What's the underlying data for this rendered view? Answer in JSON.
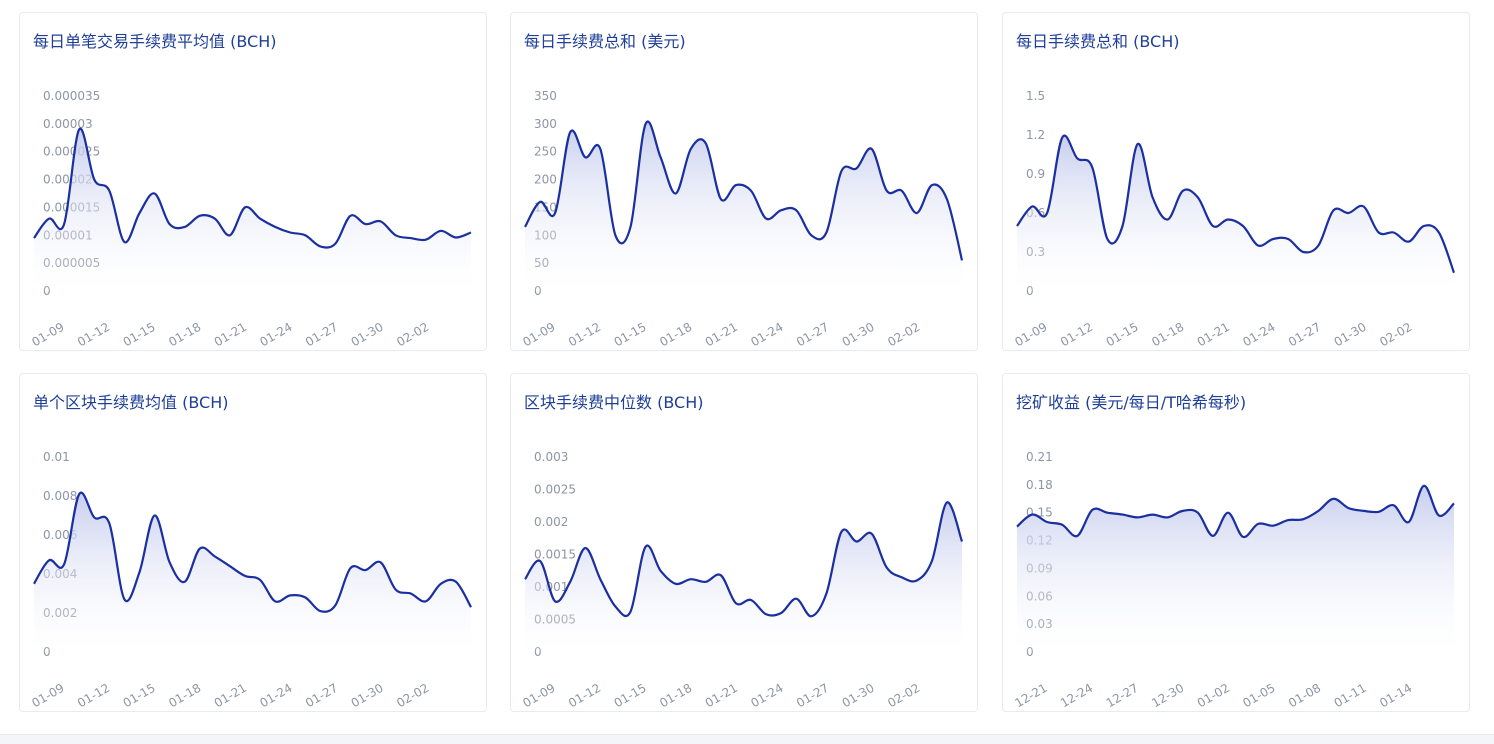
{
  "colors": {
    "line": "#1a2fa0",
    "area_top": "#c2c9ec",
    "area_bottom": "#ffffff",
    "title": "#1f3f98",
    "tick": "#8e95a3"
  },
  "chart_data": [
    {
      "type": "area",
      "title": "每日单笔交易手续费平均值 (BCH)",
      "ylim": [
        0,
        3.5e-05
      ],
      "yticks": [
        "0",
        "0.000005",
        "0.00001",
        "0.000015",
        "0.00002",
        "0.000025",
        "0.00003",
        "0.000035"
      ],
      "xticks": [
        "01-09",
        "01-12",
        "01-15",
        "01-18",
        "01-21",
        "01-24",
        "01-27",
        "01-30",
        "02-02"
      ],
      "x": [
        "01-06",
        "01-07",
        "01-08",
        "01-09",
        "01-10",
        "01-11",
        "01-12",
        "01-13",
        "01-14",
        "01-15",
        "01-16",
        "01-17",
        "01-18",
        "01-19",
        "01-20",
        "01-21",
        "01-22",
        "01-23",
        "01-24",
        "01-25",
        "01-26",
        "01-27",
        "01-28",
        "01-29",
        "01-30",
        "01-31",
        "02-01",
        "02-02",
        "02-03",
        "02-04"
      ],
      "values": [
        9.5e-06,
        1.3e-05,
        1.2e-05,
        2.9e-05,
        2e-05,
        1.8e-05,
        8.8e-06,
        1.4e-05,
        1.75e-05,
        1.2e-05,
        1.15e-05,
        1.35e-05,
        1.3e-05,
        1e-05,
        1.5e-05,
        1.3e-05,
        1.15e-05,
        1.05e-05,
        1e-05,
        8e-06,
        8.5e-06,
        1.35e-05,
        1.2e-05,
        1.25e-05,
        1e-05,
        9.5e-06,
        9.2e-06,
        1.08e-05,
        9.6e-06,
        1.05e-05
      ],
      "grid": false,
      "legend": "none"
    },
    {
      "type": "area",
      "title": "每日手续费总和 (美元)",
      "ylim": [
        0,
        350
      ],
      "yticks": [
        "0",
        "50",
        "100",
        "150",
        "200",
        "250",
        "300",
        "350"
      ],
      "xticks": [
        "01-09",
        "01-12",
        "01-15",
        "01-18",
        "01-21",
        "01-24",
        "01-27",
        "01-30",
        "02-02"
      ],
      "x": [
        "01-06",
        "01-07",
        "01-08",
        "01-09",
        "01-10",
        "01-11",
        "01-12",
        "01-13",
        "01-14",
        "01-15",
        "01-16",
        "01-17",
        "01-18",
        "01-19",
        "01-20",
        "01-21",
        "01-22",
        "01-23",
        "01-24",
        "01-25",
        "01-26",
        "01-27",
        "01-28",
        "01-29",
        "01-30",
        "01-31",
        "02-01",
        "02-02",
        "02-03",
        "02-04"
      ],
      "values": [
        115,
        160,
        140,
        285,
        240,
        255,
        100,
        115,
        300,
        240,
        175,
        255,
        265,
        165,
        190,
        180,
        130,
        145,
        145,
        100,
        105,
        215,
        220,
        255,
        180,
        180,
        140,
        190,
        165,
        55
      ],
      "grid": false,
      "legend": "none"
    },
    {
      "type": "area",
      "title": "每日手续费总和 (BCH)",
      "ylim": [
        0,
        1.5
      ],
      "yticks": [
        "0",
        "0.3",
        "0.6",
        "0.9",
        "1.2",
        "1.5"
      ],
      "xticks": [
        "01-09",
        "01-12",
        "01-15",
        "01-18",
        "01-21",
        "01-24",
        "01-27",
        "01-30",
        "02-02"
      ],
      "x": [
        "01-06",
        "01-07",
        "01-08",
        "01-09",
        "01-10",
        "01-11",
        "01-12",
        "01-13",
        "01-14",
        "01-15",
        "01-16",
        "01-17",
        "01-18",
        "01-19",
        "01-20",
        "01-21",
        "01-22",
        "01-23",
        "01-24",
        "01-25",
        "01-26",
        "01-27",
        "01-28",
        "01-29",
        "01-30",
        "01-31",
        "02-01",
        "02-02",
        "02-03",
        "02-04"
      ],
      "values": [
        0.5,
        0.65,
        0.6,
        1.18,
        1.02,
        0.95,
        0.4,
        0.5,
        1.13,
        0.72,
        0.55,
        0.77,
        0.72,
        0.5,
        0.55,
        0.5,
        0.35,
        0.4,
        0.4,
        0.3,
        0.35,
        0.62,
        0.6,
        0.65,
        0.45,
        0.45,
        0.38,
        0.5,
        0.45,
        0.14
      ],
      "grid": false,
      "legend": "none"
    },
    {
      "type": "area",
      "title": "单个区块手续费均值 (BCH)",
      "ylim": [
        0,
        0.01
      ],
      "yticks": [
        "0",
        "0.002",
        "0.004",
        "0.006",
        "0.008",
        "0.01"
      ],
      "xticks": [
        "01-09",
        "01-12",
        "01-15",
        "01-18",
        "01-21",
        "01-24",
        "01-27",
        "01-30",
        "02-02"
      ],
      "x": [
        "01-06",
        "01-07",
        "01-08",
        "01-09",
        "01-10",
        "01-11",
        "01-12",
        "01-13",
        "01-14",
        "01-15",
        "01-16",
        "01-17",
        "01-18",
        "01-19",
        "01-20",
        "01-21",
        "01-22",
        "01-23",
        "01-24",
        "01-25",
        "01-26",
        "01-27",
        "01-28",
        "01-29",
        "01-30",
        "01-31",
        "02-01",
        "02-02",
        "02-03",
        "02-04"
      ],
      "values": [
        0.0035,
        0.0047,
        0.0045,
        0.0081,
        0.0069,
        0.0066,
        0.0027,
        0.0041,
        0.007,
        0.0046,
        0.0036,
        0.0053,
        0.0049,
        0.0044,
        0.0039,
        0.0037,
        0.0026,
        0.0029,
        0.0028,
        0.0021,
        0.0024,
        0.0043,
        0.0042,
        0.0046,
        0.0032,
        0.003,
        0.0026,
        0.0035,
        0.0036,
        0.0023
      ],
      "grid": false,
      "legend": "none"
    },
    {
      "type": "area",
      "title": "区块手续费中位数 (BCH)",
      "ylim": [
        0,
        0.003
      ],
      "yticks": [
        "0",
        "0.0005",
        "0.001",
        "0.0015",
        "0.002",
        "0.0025",
        "0.003"
      ],
      "xticks": [
        "01-09",
        "01-12",
        "01-15",
        "01-18",
        "01-21",
        "01-24",
        "01-27",
        "01-30",
        "02-02"
      ],
      "x": [
        "01-06",
        "01-07",
        "01-08",
        "01-09",
        "01-10",
        "01-11",
        "01-12",
        "01-13",
        "01-14",
        "01-15",
        "01-16",
        "01-17",
        "01-18",
        "01-19",
        "01-20",
        "01-21",
        "01-22",
        "01-23",
        "01-24",
        "01-25",
        "01-26",
        "01-27",
        "01-28",
        "01-29",
        "01-30",
        "01-31",
        "02-01",
        "02-02",
        "02-03",
        "02-04"
      ],
      "values": [
        0.00112,
        0.0014,
        0.00078,
        0.00108,
        0.0016,
        0.00112,
        0.0007,
        0.00062,
        0.00162,
        0.00125,
        0.00105,
        0.00112,
        0.00108,
        0.00118,
        0.00075,
        0.0008,
        0.00058,
        0.0006,
        0.00082,
        0.00055,
        0.0009,
        0.00185,
        0.0017,
        0.00182,
        0.0013,
        0.00115,
        0.0011,
        0.0014,
        0.0023,
        0.0017
      ],
      "grid": false,
      "legend": "none"
    },
    {
      "type": "area",
      "title": "挖矿收益 (美元/每日/T哈希每秒)",
      "ylim": [
        0,
        0.21
      ],
      "yticks": [
        "0",
        "0.03",
        "0.06",
        "0.09",
        "0.12",
        "0.15",
        "0.18",
        "0.21"
      ],
      "xticks": [
        "12-21",
        "12-24",
        "12-27",
        "12-30",
        "01-02",
        "01-05",
        "01-08",
        "01-11",
        "01-14"
      ],
      "x": [
        "12-18",
        "12-19",
        "12-20",
        "12-21",
        "12-22",
        "12-23",
        "12-24",
        "12-25",
        "12-26",
        "12-27",
        "12-28",
        "12-29",
        "12-30",
        "12-31",
        "01-01",
        "01-02",
        "01-03",
        "01-04",
        "01-05",
        "01-06",
        "01-07",
        "01-08",
        "01-09",
        "01-10",
        "01-11",
        "01-12",
        "01-13",
        "01-14",
        "01-15",
        "01-16"
      ],
      "values": [
        0.135,
        0.148,
        0.14,
        0.137,
        0.125,
        0.153,
        0.15,
        0.148,
        0.145,
        0.148,
        0.145,
        0.152,
        0.15,
        0.125,
        0.15,
        0.124,
        0.138,
        0.136,
        0.142,
        0.143,
        0.152,
        0.165,
        0.155,
        0.152,
        0.151,
        0.158,
        0.14,
        0.179,
        0.147,
        0.16
      ],
      "grid": false,
      "legend": "none"
    }
  ]
}
